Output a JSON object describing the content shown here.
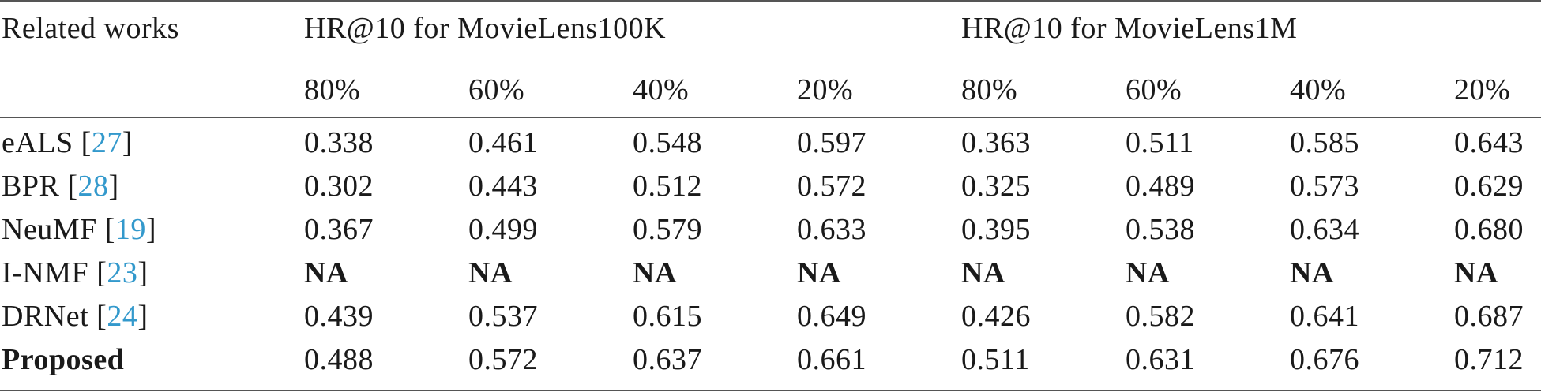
{
  "table": {
    "header": {
      "row_label": "Related works",
      "group_1": "HR@10 for MovieLens100K",
      "group_2": "HR@10 for MovieLens1M",
      "splits": [
        "80%",
        "60%",
        "40%",
        "20%",
        "80%",
        "60%",
        "40%",
        "20%"
      ]
    },
    "rows": [
      {
        "name": "eALS",
        "ref": "27",
        "values": [
          "0.338",
          "0.461",
          "0.548",
          "0.597",
          "0.363",
          "0.511",
          "0.585",
          "0.643"
        ]
      },
      {
        "name": "BPR",
        "ref": "28",
        "values": [
          "0.302",
          "0.443",
          "0.512",
          "0.572",
          "0.325",
          "0.489",
          "0.573",
          "0.629"
        ]
      },
      {
        "name": "NeuMF",
        "ref": "19",
        "values": [
          "0.367",
          "0.499",
          "0.579",
          "0.633",
          "0.395",
          "0.538",
          "0.634",
          "0.680"
        ]
      },
      {
        "name": "I-NMF",
        "ref": "23",
        "values": [
          "NA",
          "NA",
          "NA",
          "NA",
          "NA",
          "NA",
          "NA",
          "NA"
        ]
      },
      {
        "name": "DRNet",
        "ref": "24",
        "values": [
          "0.439",
          "0.537",
          "0.615",
          "0.649",
          "0.426",
          "0.582",
          "0.641",
          "0.687"
        ]
      },
      {
        "name": "Proposed",
        "ref": "",
        "values": [
          "0.488",
          "0.572",
          "0.637",
          "0.661",
          "0.511",
          "0.631",
          "0.676",
          "0.712"
        ]
      }
    ]
  },
  "colors": {
    "citation": "#3399cc",
    "rule": "#555555",
    "text": "#1a1a1a"
  }
}
